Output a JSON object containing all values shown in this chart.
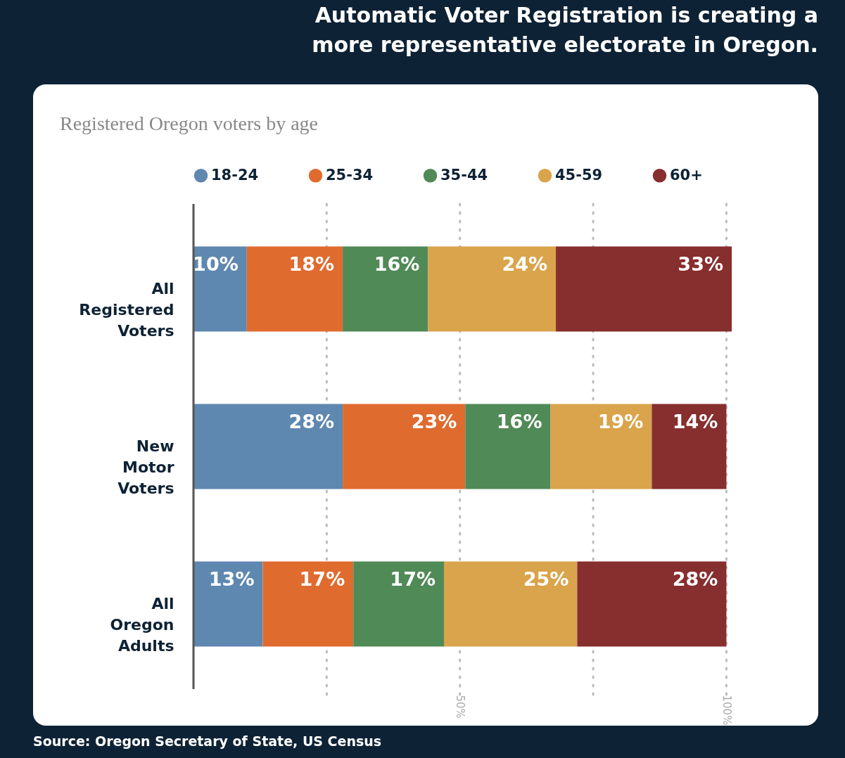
{
  "chart_data": {
    "type": "bar",
    "orientation": "horizontal",
    "stacked": true,
    "title": "Automatic Voter Registration is creating a more representative electorate in Oregon.",
    "subtitle": "Registered Oregon voters by age",
    "categories": [
      "All Registered Voters",
      "New Motor Voters",
      "All Oregon Adults"
    ],
    "series": [
      {
        "name": "18-24",
        "color": "#5f88b0",
        "values": [
          10,
          28,
          13
        ],
        "value_labels": [
          "10%",
          "28%",
          "13%"
        ]
      },
      {
        "name": "25-34",
        "color": "#e06b2f",
        "values": [
          18,
          23,
          17
        ],
        "value_labels": [
          "18%",
          "23%",
          "17%"
        ]
      },
      {
        "name": "35-44",
        "color": "#508a57",
        "values": [
          16,
          16,
          17
        ],
        "value_labels": [
          "16%",
          "16%",
          "17%"
        ]
      },
      {
        "name": "45-59",
        "color": "#d9a44b",
        "values": [
          24,
          19,
          25
        ],
        "value_labels": [
          "24%",
          "19%",
          "25%"
        ]
      },
      {
        "name": "60+",
        "color": "#872e2e",
        "values": [
          33,
          14,
          28
        ],
        "value_labels": [
          "33%",
          "14%",
          "28%"
        ]
      }
    ],
    "xlim": [
      0,
      101
    ],
    "xticks": [
      {
        "value": 25,
        "label": null
      },
      {
        "value": 50,
        "label": "50%"
      },
      {
        "value": 75,
        "label": null
      },
      {
        "value": 100,
        "label": "100%"
      }
    ],
    "grid": "x",
    "legend": "top",
    "annotations": [
      "Source: Oregon Secretary of State, US Census"
    ]
  }
}
